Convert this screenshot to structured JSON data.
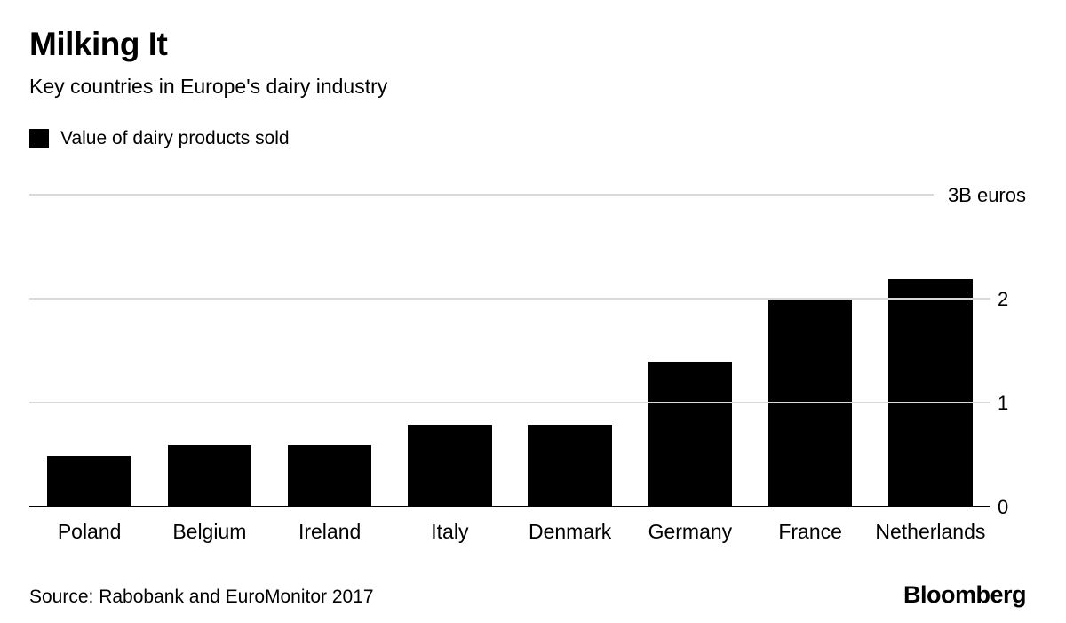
{
  "chart_data": {
    "type": "bar",
    "title": "Milking It",
    "subtitle": "Key countries in Europe's dairy industry",
    "legend_label": "Value of dairy products sold",
    "legend_swatch_color": "#000000",
    "categories": [
      "Poland",
      "Belgium",
      "Ireland",
      "Italy",
      "Denmark",
      "Germany",
      "France",
      "Netherlands"
    ],
    "values": [
      0.5,
      0.6,
      0.6,
      0.8,
      0.8,
      1.4,
      2.0,
      2.2
    ],
    "ylim": [
      0,
      3
    ],
    "yticks": [
      0,
      1,
      2,
      3
    ],
    "ytick_labels": [
      "0",
      "1",
      "2",
      "3B euros"
    ],
    "ylabel": "",
    "xlabel": "",
    "grid": true,
    "legend_position": "top-left",
    "bar_color": "#000000",
    "gridline_color": "#d9d9d9",
    "source": "Source: Rabobank and EuroMonitor 2017",
    "brand": "Bloomberg"
  }
}
